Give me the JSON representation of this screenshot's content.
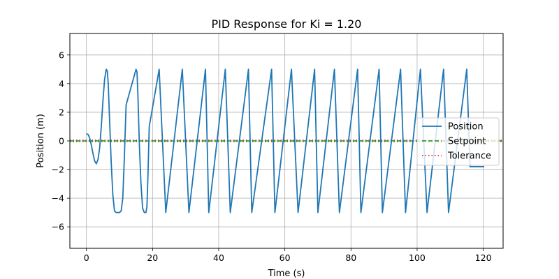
{
  "chart_data": {
    "type": "line",
    "title": "PID Response for Ki = 1.20",
    "xlabel": "Time (s)",
    "ylabel": "Position (m)",
    "xlim": [
      -5,
      126
    ],
    "ylim": [
      -7.5,
      7.5
    ],
    "xticks": [
      0,
      20,
      40,
      60,
      80,
      100,
      120
    ],
    "yticks": [
      -6,
      -4,
      -2,
      0,
      2,
      4,
      6
    ],
    "grid": true,
    "legend_position": "center-right",
    "series": [
      {
        "name": "Position",
        "color": "#1f77b4",
        "style": "solid",
        "t": [
          0,
          0.5,
          1,
          1.5,
          2,
          2.5,
          3,
          3.5,
          4,
          4.5,
          5,
          5.5,
          6,
          6.3,
          6.6,
          7,
          7.5,
          8,
          8.5,
          9,
          9.5,
          10,
          10.5,
          11,
          11.5,
          12,
          15,
          15.3,
          15.6,
          16,
          16.5,
          17,
          17.5,
          18,
          18.3,
          18.6,
          19,
          22,
          24,
          29,
          31,
          36,
          37,
          42,
          43.5,
          49,
          50,
          56,
          57,
          62,
          64,
          69,
          70,
          75,
          76.5,
          82,
          83,
          88.5,
          89.5,
          95,
          96.5,
          101,
          103,
          108,
          109.5,
          115,
          116,
          120.3
        ],
        "values": [
          0.5,
          0.45,
          0.2,
          -0.3,
          -0.9,
          -1.4,
          -1.6,
          -1.3,
          -0.5,
          1.0,
          2.8,
          4.3,
          5.0,
          4.9,
          4.0,
          1.5,
          -1.5,
          -3.8,
          -4.9,
          -5.0,
          -5.0,
          -5.0,
          -4.9,
          -4.0,
          -1.0,
          2.5,
          5.0,
          4.8,
          3.0,
          -0.2,
          -3.0,
          -4.7,
          -5.0,
          -5.0,
          -4.6,
          -2.5,
          1.0,
          5.0,
          -5.0,
          5.0,
          -5.0,
          5.0,
          -5.0,
          5.0,
          -5.0,
          5.0,
          -5.0,
          5.0,
          -5.0,
          5.0,
          -5.0,
          5.0,
          -5.0,
          5.0,
          -5.0,
          5.0,
          -5.0,
          5.0,
          -5.0,
          5.0,
          -5.0,
          5.0,
          -5.0,
          5.0,
          -5.0,
          5.0,
          -1.8,
          -1.8
        ]
      },
      {
        "name": "Setpoint",
        "color": "#2ca02c",
        "style": "dashed",
        "value": 0
      },
      {
        "name": "Tolerance",
        "color": "#d62728",
        "style": "dotted",
        "values": [
          -0.05,
          0.05
        ]
      }
    ]
  }
}
